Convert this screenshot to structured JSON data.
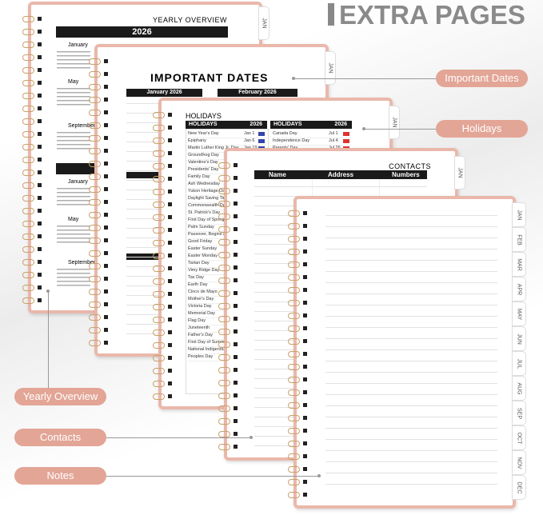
{
  "header": {
    "title": "EXTRA PAGES"
  },
  "callouts": {
    "important_dates": "Important Dates",
    "holidays": "Holidays",
    "yearly_overview": "Yearly Overview",
    "contacts": "Contacts",
    "notes": "Notes"
  },
  "yearly_overview": {
    "title": "YEARLY OVERVIEW",
    "year": "2026",
    "months": [
      "January",
      "May",
      "September",
      "January",
      "May",
      "September"
    ]
  },
  "important_dates": {
    "title": "IMPORTANT DATES",
    "months": [
      "January 2026",
      "February 2026"
    ]
  },
  "holidays": {
    "title": "HOLIDAYS",
    "headers": [
      "HOLIDAYS",
      "2026",
      "HOLIDAYS",
      "2026"
    ],
    "left_names": [
      "New Year's Day",
      "Epiphany",
      "Martin Luther King Jr. Day",
      "Groundhog Day",
      "Valentine's Day",
      "Presidents' Day",
      "Family Day",
      "Ash Wednesday",
      "Yukon Heritage Day",
      "Daylight Saving Time",
      "Commonwealth Day",
      "St. Patrick's Day",
      "First Day of Spring",
      "Palm Sunday",
      "Passover, Begins at",
      "Good Friday",
      "Easter Sunday",
      "Easter Monday",
      "Tartan Day",
      "Vimy Ridge Day",
      "Tax Day",
      "Earth Day",
      "Cinco de Mayo",
      "Mother's Day",
      "Victoria Day",
      "Memorial Day",
      "Flag Day",
      "Juneteenth",
      "Father's Day",
      "First Day of Summer",
      "National Indigenous",
      "Peoples Day"
    ],
    "left_dates": [
      "Jan 1",
      "Jan 6",
      "Jan 19"
    ],
    "right_names": [
      "Canada Day",
      "Independence Day",
      "Parents' Day"
    ],
    "right_dates": [
      "Jul 1",
      "Jul 4",
      "Jul 26"
    ]
  },
  "contacts": {
    "title": "CONTACTS",
    "headers": [
      "Name",
      "Address",
      "Numbers"
    ]
  },
  "notes": {
    "tabs": [
      "JAN",
      "FEB",
      "MAR",
      "APR",
      "MAY",
      "JUN",
      "JUL",
      "AUG",
      "SEP",
      "OCT",
      "NOV",
      "DEC"
    ]
  }
}
